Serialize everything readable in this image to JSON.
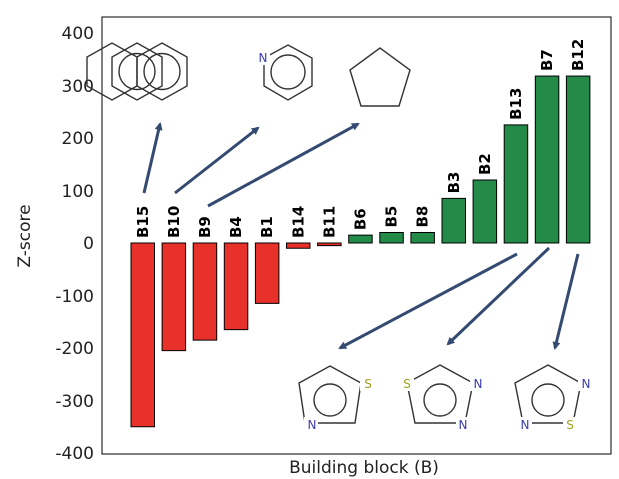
{
  "chart_data": {
    "type": "bar",
    "xlabel": "Building block (B)",
    "ylabel": "Z-score",
    "ylim": [
      -400,
      430
    ],
    "yticks": [
      400,
      300,
      200,
      100,
      0,
      -100,
      -200,
      -300,
      -400
    ],
    "grid": false,
    "categories": [
      "B15",
      "B10",
      "B9",
      "B4",
      "B1",
      "B14",
      "B11",
      "B6",
      "B5",
      "B8",
      "B3",
      "B2",
      "B13",
      "B7",
      "B12"
    ],
    "values": [
      -350,
      -205,
      -185,
      -165,
      -115,
      -10,
      -5,
      15,
      20,
      20,
      85,
      120,
      225,
      318,
      318
    ],
    "colors": {
      "negative": "#e8312b",
      "positive": "#238a47"
    }
  },
  "molecules": {
    "pyridine_atom": "N",
    "thiazole_atoms": [
      "S",
      "N"
    ],
    "thiadiazole_atoms": [
      "S",
      "N",
      "N"
    ],
    "thiadiazole2_atoms": [
      "N",
      "N",
      "S"
    ],
    "atom_color_n": "#3b3bb0",
    "atom_color_s": "#a0a020"
  }
}
